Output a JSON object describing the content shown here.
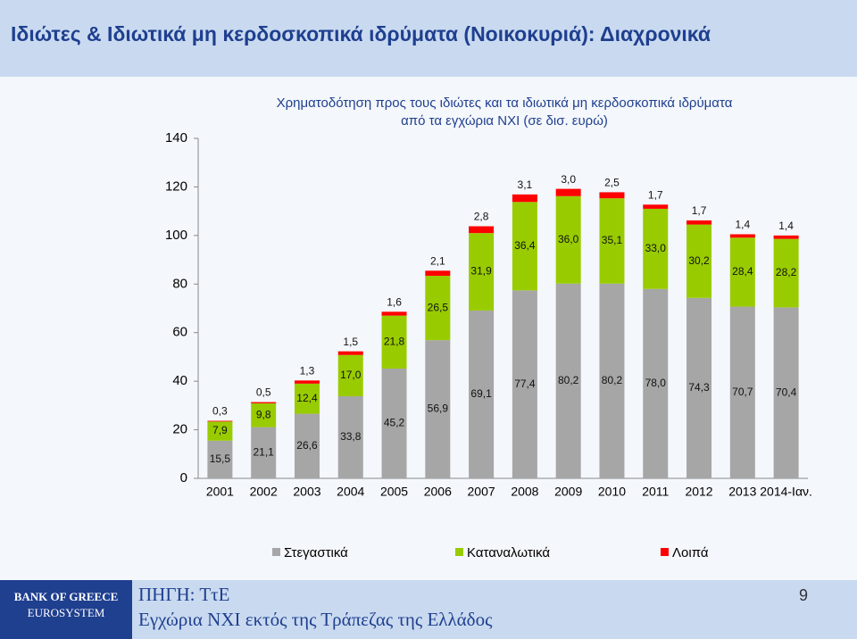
{
  "header": {
    "title": "Ιδιώτες & Ιδιωτικά μη κερδοσκοπικά ιδρύματα (Νοικοκυριά): Διαχρονικά"
  },
  "chart_data": {
    "type": "stacked_bar",
    "title": [
      "Χρηματοδότηση προς τους ιδιώτες και τα ιδιωτικά μη κερδοσκοπικά ιδρύματα",
      "από τα εγχώρια ΝΧΙ (σε δισ. ευρώ)"
    ],
    "categories": [
      "2001",
      "2002",
      "2003",
      "2004",
      "2005",
      "2006",
      "2007",
      "2008",
      "2009",
      "2010",
      "2011",
      "2012",
      "2013",
      "2014-Ιαν."
    ],
    "series": [
      {
        "name": "Στεγαστικά",
        "color": "#a6a6a6",
        "values": [
          15.5,
          21.1,
          26.6,
          33.8,
          45.2,
          56.9,
          69.1,
          77.4,
          80.2,
          80.2,
          78.0,
          74.3,
          70.7,
          70.4
        ],
        "value_labels": [
          "15,5",
          "21,1",
          "26,6",
          "33,8",
          "45,2",
          "56,9",
          "69,1",
          "77,4",
          "80,2",
          "80,2",
          "78,0",
          "74,3",
          "70,7",
          "70,4"
        ]
      },
      {
        "name": "Καταναλωτικά",
        "color": "#99cc00",
        "values": [
          7.9,
          9.8,
          12.4,
          17.0,
          21.8,
          26.5,
          31.9,
          36.4,
          36.0,
          35.1,
          33.0,
          30.2,
          28.4,
          28.2
        ],
        "value_labels": [
          "7,9",
          "9,8",
          "12,4",
          "17,0",
          "21,8",
          "26,5",
          "31,9",
          "36,4",
          "36,0",
          "35,1",
          "33,0",
          "30,2",
          "28,4",
          "28,2"
        ]
      },
      {
        "name": "Λοιπά",
        "color": "#ff0000",
        "values": [
          0.3,
          0.5,
          1.3,
          1.5,
          1.6,
          2.1,
          2.8,
          3.1,
          3.0,
          2.5,
          1.7,
          1.7,
          1.4,
          1.4
        ],
        "value_labels": [
          "0,3",
          "0,5",
          "1,3",
          "1,5",
          "1,6",
          "2,1",
          "2,8",
          "3,1",
          "3,0",
          "2,5",
          "1,7",
          "1,7",
          "1,4",
          "1,4"
        ]
      }
    ],
    "ylim": [
      0,
      140
    ],
    "yticks": [
      0,
      20,
      40,
      60,
      80,
      100,
      120,
      140
    ],
    "grid": false,
    "legend": "bottom"
  },
  "footer": {
    "bank": "BANK OF GREECE",
    "system": "EUROSYSTEM",
    "source": "ΠΗΓΗ: ΤτΕ",
    "note": "Εγχώρια ΝΧΙ εκτός της Τράπεζας της Ελλάδος",
    "page_number": "9"
  }
}
